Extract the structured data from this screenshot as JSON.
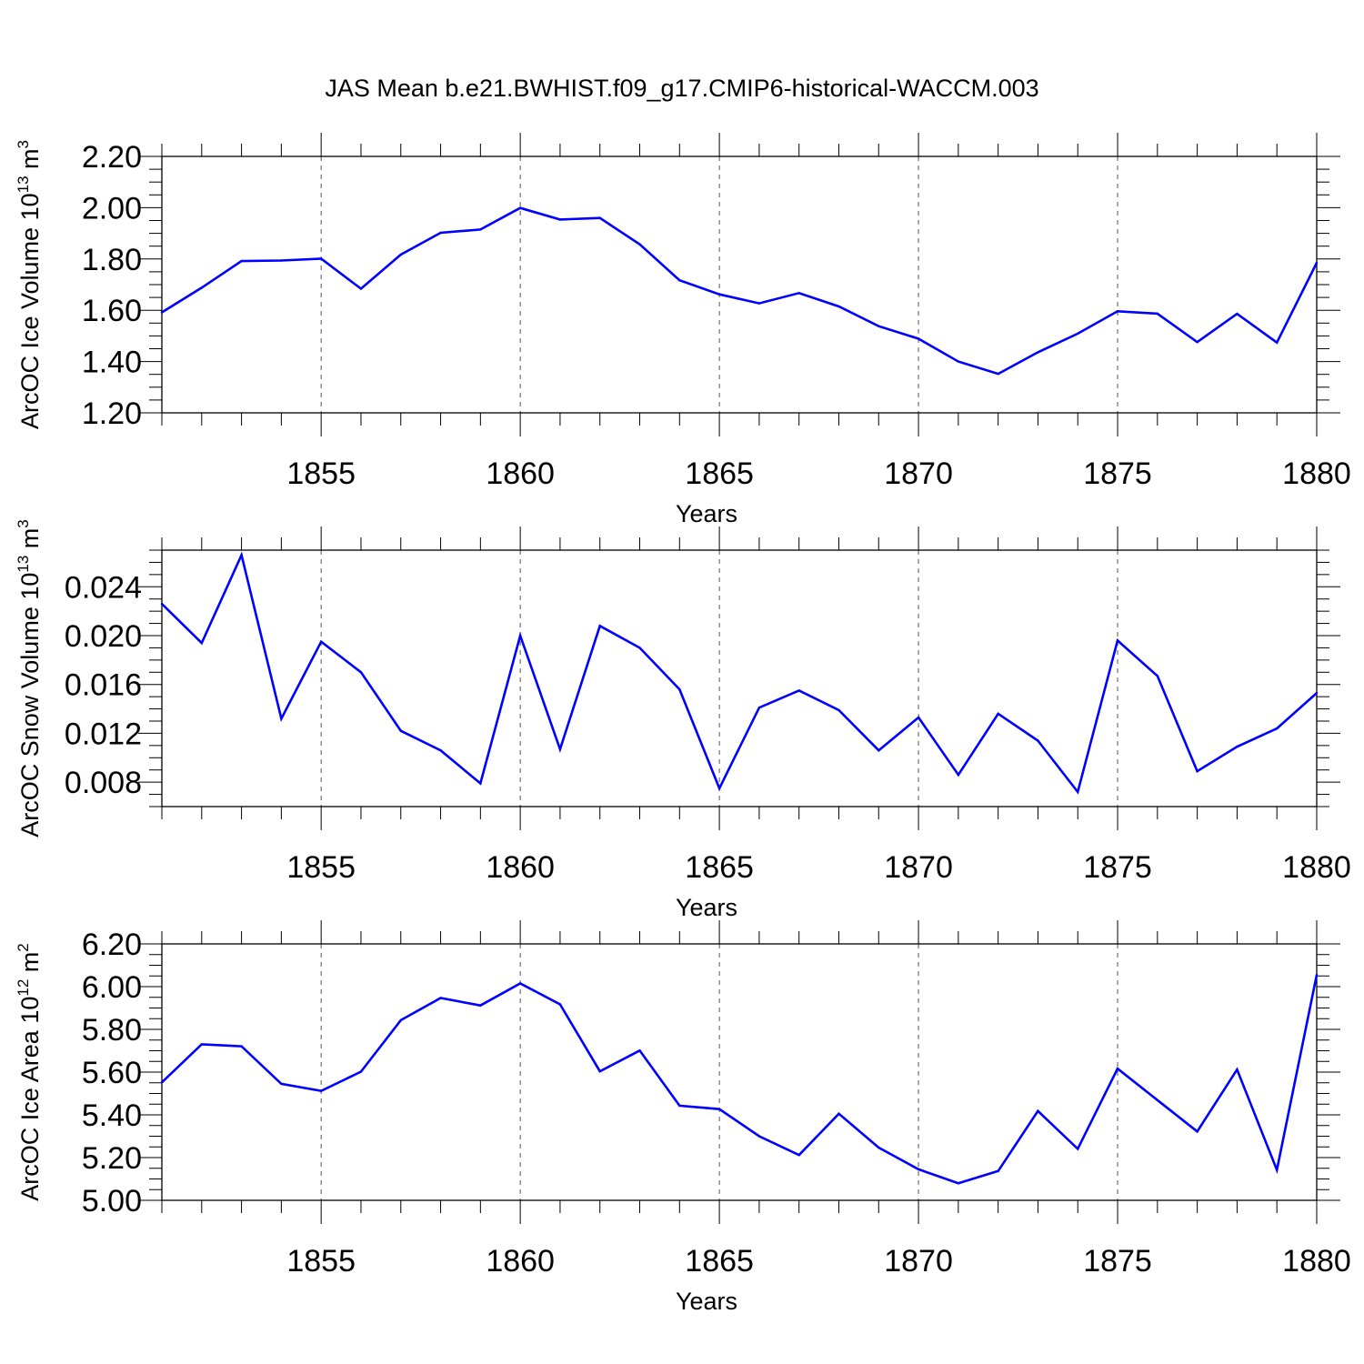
{
  "title": "JAS Mean b.e21.BWHIST.f09_g17.CMIP6-historical-WACCM.003",
  "line_color": "#0000ff",
  "chart_data": [
    {
      "type": "line",
      "xlabel": "Years",
      "ylabel": "ArcOC Ice Volume 10",
      "ylabel_exp": "13",
      "ylabel_unit": " m",
      "ylabel_unit_exp": "3",
      "xlim": [
        1851,
        1880
      ],
      "ylim": [
        1.2,
        2.2
      ],
      "x_ticks": [
        1855,
        1860,
        1865,
        1870,
        1875,
        1880
      ],
      "y_ticks": [
        "1.20",
        "1.40",
        "1.60",
        "1.80",
        "2.00",
        "2.20"
      ],
      "grid_x": true,
      "x": [
        1851,
        1852,
        1853,
        1854,
        1855,
        1856,
        1857,
        1858,
        1859,
        1860,
        1861,
        1862,
        1863,
        1864,
        1865,
        1866,
        1867,
        1868,
        1869,
        1870,
        1871,
        1872,
        1873,
        1874,
        1875,
        1876,
        1877,
        1878,
        1879,
        1880
      ],
      "values": [
        1.592,
        1.688,
        1.792,
        1.794,
        1.801,
        1.684,
        1.817,
        1.902,
        1.915,
        1.999,
        1.954,
        1.96,
        1.857,
        1.717,
        1.662,
        1.627,
        1.667,
        1.615,
        1.538,
        1.489,
        1.4,
        1.352,
        1.436,
        1.509,
        1.596,
        1.587,
        1.476,
        1.586,
        1.474,
        1.785
      ]
    },
    {
      "type": "line",
      "xlabel": "Years",
      "ylabel": "ArcOC Snow Volume 10",
      "ylabel_exp": "13",
      "ylabel_unit": " m",
      "ylabel_unit_exp": "3",
      "xlim": [
        1851,
        1880
      ],
      "ylim": [
        0.006,
        0.027
      ],
      "x_ticks": [
        1855,
        1860,
        1865,
        1870,
        1875,
        1880
      ],
      "y_ticks": [
        "0.008",
        "0.012",
        "0.016",
        "0.020",
        "0.024"
      ],
      "grid_x": true,
      "x": [
        1851,
        1852,
        1853,
        1854,
        1855,
        1856,
        1857,
        1858,
        1859,
        1860,
        1861,
        1862,
        1863,
        1864,
        1865,
        1866,
        1867,
        1868,
        1869,
        1870,
        1871,
        1872,
        1873,
        1874,
        1875,
        1876,
        1877,
        1878,
        1879,
        1880
      ],
      "values": [
        0.0226,
        0.0194,
        0.0266,
        0.0132,
        0.0195,
        0.017,
        0.0122,
        0.0106,
        0.0079,
        0.02,
        0.0107,
        0.0208,
        0.019,
        0.0156,
        0.0075,
        0.0141,
        0.0155,
        0.0139,
        0.0106,
        0.0133,
        0.0086,
        0.0136,
        0.0114,
        0.0072,
        0.0196,
        0.0167,
        0.0089,
        0.0109,
        0.0124,
        0.0153
      ]
    },
    {
      "type": "line",
      "xlabel": "Years",
      "ylabel": "ArcOC Ice Area 10",
      "ylabel_exp": "12",
      "ylabel_unit": " m",
      "ylabel_unit_exp": "2",
      "xlim": [
        1851,
        1880
      ],
      "ylim": [
        5.0,
        6.2
      ],
      "x_ticks": [
        1855,
        1860,
        1865,
        1870,
        1875,
        1880
      ],
      "y_ticks": [
        "5.00",
        "5.20",
        "5.40",
        "5.60",
        "5.80",
        "6.00",
        "6.20"
      ],
      "grid_x": true,
      "x": [
        1851,
        1852,
        1853,
        1854,
        1855,
        1856,
        1857,
        1858,
        1859,
        1860,
        1861,
        1862,
        1863,
        1864,
        1865,
        1866,
        1867,
        1868,
        1869,
        1870,
        1871,
        1872,
        1873,
        1874,
        1875,
        1876,
        1877,
        1878,
        1879,
        1880
      ],
      "values": [
        5.552,
        5.73,
        5.721,
        5.545,
        5.512,
        5.602,
        5.843,
        5.947,
        5.912,
        6.015,
        5.917,
        5.604,
        5.701,
        5.443,
        5.427,
        5.3,
        5.212,
        5.405,
        5.247,
        5.145,
        5.08,
        5.137,
        5.418,
        5.241,
        5.616,
        5.469,
        5.322,
        5.612,
        5.142,
        6.055
      ]
    }
  ]
}
